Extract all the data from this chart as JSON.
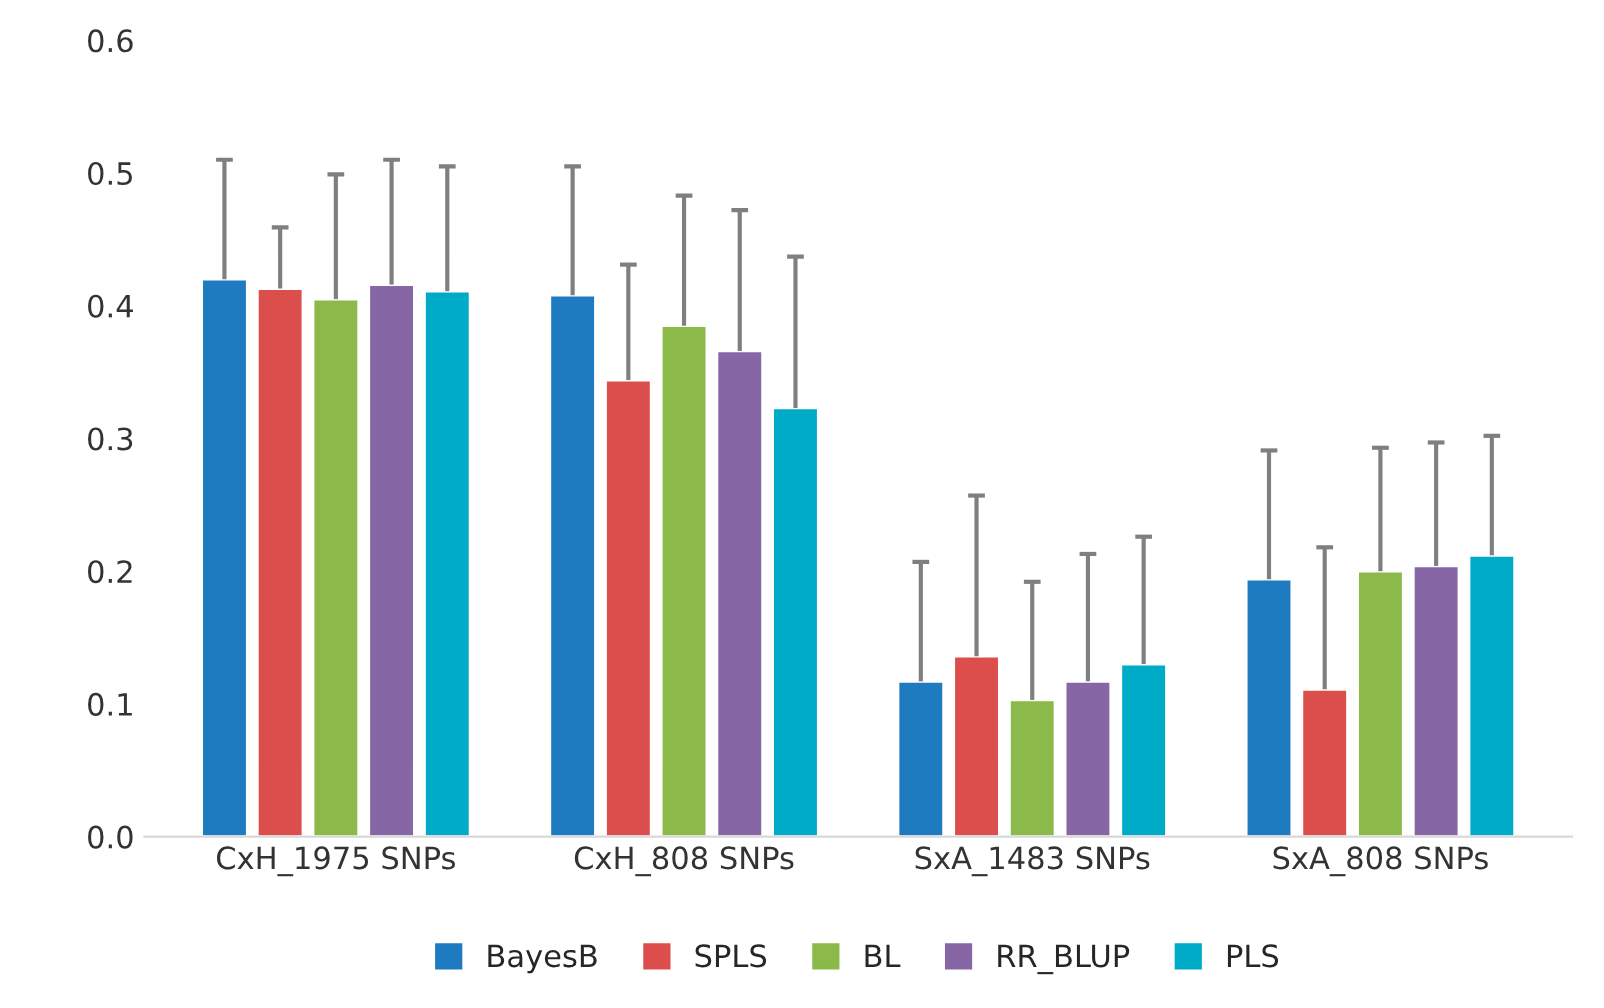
{
  "chart_data": {
    "type": "bar",
    "categories": [
      "CxH_1975 SNPs",
      "CxH_808 SNPs",
      "SxA_1483 SNPs",
      "SxA_808 SNPs"
    ],
    "series": [
      {
        "name": "BayesB",
        "color": "#1f7bbf",
        "values": [
          0.42,
          0.408,
          0.117,
          0.194
        ],
        "errors": [
          [
            0.42,
            0.51
          ],
          [
            0.408,
            0.505
          ],
          [
            0.117,
            0.207
          ],
          [
            0.194,
            0.291
          ]
        ]
      },
      {
        "name": "SPLS",
        "color": "#dc4e4b",
        "values": [
          0.413,
          0.344,
          0.136,
          0.111
        ],
        "errors": [
          [
            0.413,
            0.459
          ],
          [
            0.344,
            0.431
          ],
          [
            0.136,
            0.257
          ],
          [
            0.111,
            0.218
          ]
        ]
      },
      {
        "name": "BL",
        "color": "#8bb94a",
        "values": [
          0.405,
          0.385,
          0.103,
          0.2
        ],
        "errors": [
          [
            0.405,
            0.499
          ],
          [
            0.385,
            0.483
          ],
          [
            0.103,
            0.192
          ],
          [
            0.2,
            0.293
          ]
        ]
      },
      {
        "name": "RR_BLUP",
        "color": "#8766a6",
        "values": [
          0.416,
          0.366,
          0.117,
          0.204
        ],
        "errors": [
          [
            0.416,
            0.51
          ],
          [
            0.366,
            0.472
          ],
          [
            0.117,
            0.213
          ],
          [
            0.204,
            0.297
          ]
        ]
      },
      {
        "name": "PLS",
        "color": "#00abc8",
        "values": [
          0.411,
          0.323,
          0.13,
          0.212
        ],
        "errors": [
          [
            0.411,
            0.505
          ],
          [
            0.323,
            0.437
          ],
          [
            0.13,
            0.226
          ],
          [
            0.212,
            0.302
          ]
        ]
      }
    ],
    "ylim": [
      0,
      0.6
    ],
    "yticks": [
      {
        "value": 0,
        "label": "0.0"
      },
      0.1,
      0.2,
      0.3,
      0.4,
      0.5,
      0.6
    ],
    "grid": false,
    "legend": "bottom"
  }
}
